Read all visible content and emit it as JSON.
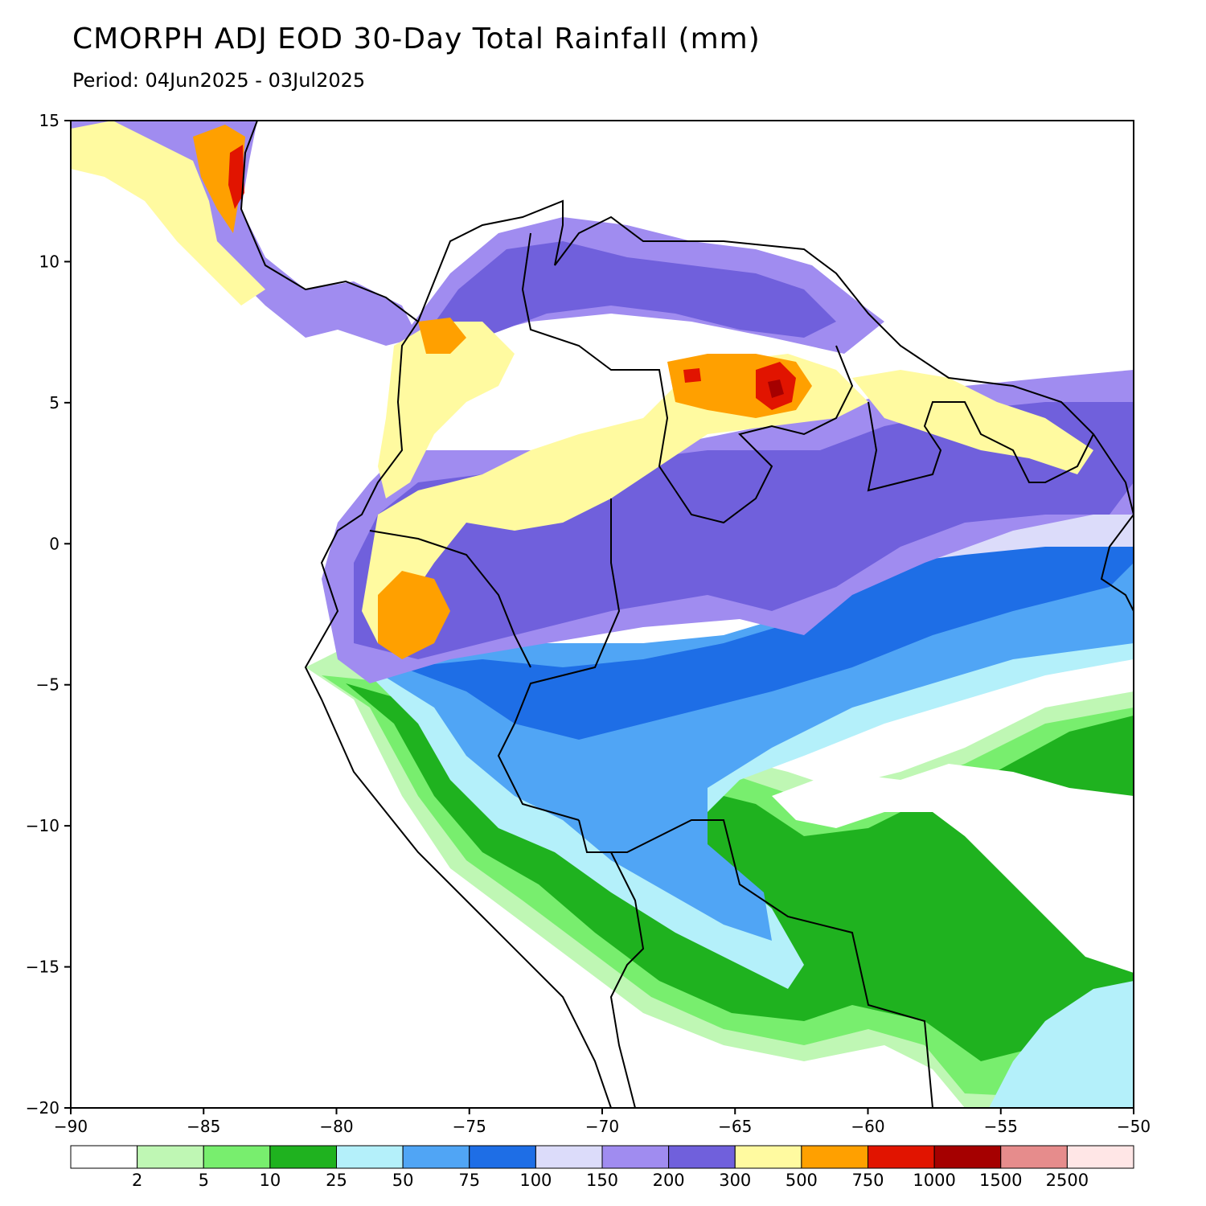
{
  "header": {
    "title": "CMORPH ADJ EOD 30-Day Total Rainfall (mm)",
    "period": "Period: 04Jun2025 - 03Jul2025"
  },
  "map": {
    "lon_range": [
      -90,
      -50
    ],
    "lat_range": [
      -20,
      15
    ],
    "x_ticks": [
      {
        "value": -90,
        "label": "−90"
      },
      {
        "value": -85,
        "label": "−85"
      },
      {
        "value": -80,
        "label": "−80"
      },
      {
        "value": -75,
        "label": "−75"
      },
      {
        "value": -70,
        "label": "−70"
      },
      {
        "value": -65,
        "label": "−65"
      },
      {
        "value": -60,
        "label": "−60"
      },
      {
        "value": -55,
        "label": "−55"
      },
      {
        "value": -50,
        "label": "−50"
      }
    ],
    "y_ticks": [
      {
        "value": 15,
        "label": "15"
      },
      {
        "value": 10,
        "label": "10"
      },
      {
        "value": 5,
        "label": "5"
      },
      {
        "value": 0,
        "label": "0"
      },
      {
        "value": -5,
        "label": "−5"
      },
      {
        "value": -10,
        "label": "−10"
      },
      {
        "value": -15,
        "label": "−15"
      },
      {
        "value": -20,
        "label": "−20"
      }
    ]
  },
  "colorbar": {
    "colors": [
      "#ffffff",
      "#bff7b4",
      "#78ee6e",
      "#1fb21f",
      "#b4f0fa",
      "#50a5f5",
      "#1e6ee6",
      "#dcdcfa",
      "#a08cf0",
      "#7060dc",
      "#fffaa0",
      "#ffa000",
      "#e11400",
      "#a50000",
      "#e68c8c",
      "#ffe6e6"
    ],
    "labels": [
      "2",
      "5",
      "10",
      "25",
      "50",
      "75",
      "100",
      "150",
      "200",
      "300",
      "500",
      "750",
      "1000",
      "1500",
      "2500"
    ]
  }
}
